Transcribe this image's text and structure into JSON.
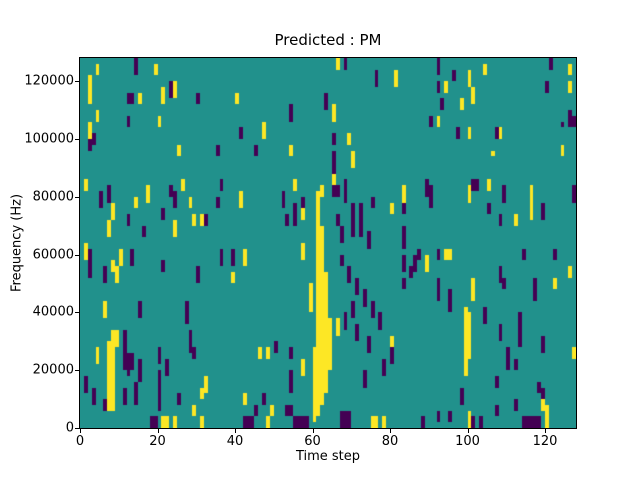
{
  "chart_data": {
    "type": "heatmap",
    "title": "Predicted : PM",
    "xlabel": "Time step",
    "ylabel": "Frequency (Hz)",
    "xlim": [
      0,
      128
    ],
    "ylim": [
      0,
      128000
    ],
    "x_ticks": [
      0,
      20,
      40,
      60,
      80,
      100,
      120
    ],
    "y_ticks": [
      0,
      20000,
      40000,
      60000,
      80000,
      100000,
      120000
    ],
    "grid": {
      "n_cols": 128,
      "n_rows": 64,
      "hz_per_row": 2000,
      "steps_per_col": 1
    },
    "colors": {
      "0": "#440154",
      "1": "#21918c",
      "2": "#fde725"
    },
    "background_value": 1,
    "value_legend": {
      "0": "low (dark purple)",
      "1": "mid (teal background)",
      "2": "high (yellow)"
    },
    "cell_runs": [
      [
        2,
        56,
        60,
        2
      ],
      [
        4,
        61,
        62,
        2
      ],
      [
        14,
        61,
        63,
        0
      ],
      [
        19,
        61,
        62,
        2
      ],
      [
        23,
        57,
        59,
        0
      ],
      [
        24,
        57,
        59,
        2
      ],
      [
        12,
        56,
        57,
        0
      ],
      [
        13,
        56,
        57,
        0
      ],
      [
        15,
        56,
        57,
        2
      ],
      [
        21,
        56,
        58,
        2
      ],
      [
        30,
        56,
        57,
        0
      ],
      [
        40,
        56,
        57,
        2
      ],
      [
        4,
        53,
        54,
        2
      ],
      [
        12,
        52,
        53,
        0
      ],
      [
        20,
        52,
        53,
        2
      ],
      [
        2,
        50,
        52,
        2
      ],
      [
        3,
        49,
        50,
        0
      ],
      [
        2,
        48,
        49,
        0
      ],
      [
        41,
        50,
        51,
        0
      ],
      [
        25,
        47,
        48,
        2
      ],
      [
        35,
        47,
        48,
        0
      ],
      [
        66,
        62,
        63,
        2
      ],
      [
        68,
        62,
        63,
        0
      ],
      [
        76,
        59,
        61,
        0
      ],
      [
        81,
        59,
        61,
        2
      ],
      [
        63,
        55,
        57,
        0
      ],
      [
        65,
        53,
        55,
        2
      ],
      [
        54,
        53,
        55,
        0
      ],
      [
        47,
        50,
        52,
        2
      ],
      [
        65,
        49,
        50,
        0
      ],
      [
        69,
        49,
        50,
        2
      ],
      [
        45,
        47,
        48,
        0
      ],
      [
        54,
        47,
        48,
        2
      ],
      [
        121,
        62,
        63,
        0
      ],
      [
        92,
        61,
        63,
        0
      ],
      [
        104,
        61,
        62,
        2
      ],
      [
        126,
        61,
        62,
        2
      ],
      [
        96,
        60,
        61,
        0
      ],
      [
        100,
        59,
        61,
        2
      ],
      [
        92,
        58,
        59,
        0
      ],
      [
        94,
        58,
        59,
        2
      ],
      [
        120,
        58,
        59,
        0
      ],
      [
        126,
        58,
        59,
        2
      ],
      [
        101,
        56,
        58,
        2
      ],
      [
        93,
        55,
        56,
        0
      ],
      [
        98,
        55,
        56,
        2
      ],
      [
        126,
        52,
        54,
        0
      ],
      [
        127,
        52,
        53,
        0
      ],
      [
        90,
        52,
        53,
        0
      ],
      [
        92,
        52,
        53,
        2
      ],
      [
        124,
        52,
        52,
        0
      ],
      [
        97,
        50,
        51,
        0
      ],
      [
        100,
        50,
        51,
        2
      ],
      [
        107,
        50,
        51,
        0
      ],
      [
        108,
        50,
        51,
        2
      ],
      [
        124,
        47,
        48,
        2
      ],
      [
        106,
        47,
        47,
        2
      ],
      [
        1,
        41,
        42,
        2
      ],
      [
        7,
        39,
        41,
        0
      ],
      [
        26,
        41,
        42,
        2
      ],
      [
        36,
        41,
        42,
        0
      ],
      [
        23,
        40,
        41,
        0
      ],
      [
        17,
        39,
        41,
        2
      ],
      [
        5,
        38,
        40,
        0
      ],
      [
        14,
        38,
        39,
        2
      ],
      [
        28,
        38,
        39,
        2
      ],
      [
        24,
        38,
        40,
        0
      ],
      [
        35,
        38,
        39,
        0
      ],
      [
        41,
        38,
        40,
        2
      ],
      [
        8,
        36,
        38,
        2
      ],
      [
        12,
        35,
        36,
        0
      ],
      [
        21,
        36,
        37,
        0
      ],
      [
        29,
        35,
        36,
        2
      ],
      [
        31,
        35,
        36,
        2
      ],
      [
        32,
        35,
        36,
        0
      ],
      [
        65,
        43,
        44,
        0
      ],
      [
        65,
        42,
        43,
        2
      ],
      [
        68,
        41,
        42,
        0
      ],
      [
        65,
        40,
        41,
        0
      ],
      [
        66,
        40,
        41,
        0
      ],
      [
        62,
        40,
        41,
        2
      ],
      [
        68,
        39,
        40,
        0
      ],
      [
        75,
        38,
        39,
        0
      ],
      [
        70,
        37,
        38,
        0
      ],
      [
        72,
        37,
        38,
        0
      ],
      [
        80,
        37,
        38,
        2
      ],
      [
        83,
        37,
        38,
        0
      ],
      [
        55,
        41,
        42,
        2
      ],
      [
        52,
        38,
        40,
        0
      ],
      [
        57,
        38,
        39,
        0
      ],
      [
        57,
        36,
        37,
        2
      ],
      [
        55,
        35,
        38,
        0
      ],
      [
        53,
        35,
        36,
        0
      ],
      [
        66,
        35,
        36,
        0
      ],
      [
        101,
        41,
        42,
        0
      ],
      [
        102,
        41,
        42,
        0
      ],
      [
        105,
        41,
        42,
        2
      ],
      [
        83,
        39,
        41,
        2
      ],
      [
        90,
        38,
        41,
        0
      ],
      [
        100,
        39,
        41,
        2
      ],
      [
        109,
        39,
        41,
        0
      ],
      [
        116,
        39,
        41,
        2
      ],
      [
        127,
        39,
        41,
        0
      ],
      [
        105,
        37,
        38,
        0
      ],
      [
        116,
        36,
        38,
        2
      ],
      [
        119,
        36,
        38,
        0
      ],
      [
        108,
        35,
        36,
        0
      ],
      [
        112,
        35,
        36,
        2
      ],
      [
        89,
        40,
        42,
        0
      ],
      [
        7,
        33,
        35,
        2
      ],
      [
        16,
        33,
        34,
        0
      ],
      [
        24,
        33,
        35,
        2
      ],
      [
        1,
        29,
        31,
        2
      ],
      [
        2,
        26,
        30,
        0
      ],
      [
        10,
        28,
        30,
        2
      ],
      [
        13,
        28,
        30,
        0
      ],
      [
        8,
        27,
        28,
        2
      ],
      [
        21,
        27,
        28,
        0
      ],
      [
        36,
        28,
        30,
        0
      ],
      [
        39,
        28,
        30,
        0
      ],
      [
        42,
        28,
        30,
        2
      ],
      [
        6,
        25,
        27,
        0
      ],
      [
        9,
        25,
        27,
        2
      ],
      [
        39,
        25,
        26,
        2
      ],
      [
        30,
        25,
        27,
        0
      ],
      [
        67,
        32,
        34,
        0
      ],
      [
        70,
        33,
        38,
        0
      ],
      [
        72,
        33,
        38,
        0
      ],
      [
        74,
        31,
        33,
        0
      ],
      [
        67,
        28,
        29,
        0
      ],
      [
        57,
        29,
        31,
        2
      ],
      [
        69,
        25,
        27,
        0
      ],
      [
        65,
        45,
        47,
        0
      ],
      [
        70,
        45,
        47,
        2
      ],
      [
        83,
        31,
        34,
        0
      ],
      [
        87,
        29,
        30,
        0
      ],
      [
        92,
        29,
        30,
        0
      ],
      [
        94,
        29,
        30,
        2
      ],
      [
        95,
        29,
        30,
        2
      ],
      [
        114,
        29,
        30,
        0
      ],
      [
        122,
        29,
        30,
        0
      ],
      [
        83,
        27,
        29,
        0
      ],
      [
        86,
        27,
        29,
        0
      ],
      [
        89,
        27,
        29,
        2
      ],
      [
        85,
        26,
        27,
        0
      ],
      [
        126,
        26,
        27,
        2
      ],
      [
        108,
        25,
        27,
        0
      ],
      [
        83,
        24,
        25,
        0
      ],
      [
        92,
        22,
        25,
        0
      ],
      [
        101,
        22,
        25,
        2
      ],
      [
        109,
        24,
        25,
        0
      ],
      [
        117,
        22,
        25,
        0
      ],
      [
        122,
        24,
        25,
        2
      ],
      [
        95,
        20,
        23,
        0
      ],
      [
        104,
        18,
        20,
        0
      ],
      [
        113,
        14,
        19,
        0
      ],
      [
        59,
        20,
        24,
        2
      ],
      [
        60,
        1,
        13,
        2
      ],
      [
        61,
        2,
        40,
        2
      ],
      [
        62,
        4,
        34,
        2
      ],
      [
        63,
        6,
        26,
        2
      ],
      [
        64,
        10,
        18,
        2
      ],
      [
        7,
        3,
        14,
        2
      ],
      [
        8,
        3,
        16,
        2
      ],
      [
        9,
        14,
        16,
        2
      ],
      [
        99,
        9,
        20,
        2
      ],
      [
        100,
        12,
        19,
        2
      ],
      [
        71,
        23,
        25,
        0
      ],
      [
        73,
        21,
        23,
        0
      ],
      [
        75,
        19,
        21,
        0
      ],
      [
        77,
        17,
        19,
        0
      ],
      [
        70,
        19,
        21,
        0
      ],
      [
        68,
        17,
        19,
        0
      ],
      [
        66,
        16,
        18,
        2
      ],
      [
        71,
        15,
        17,
        0
      ],
      [
        74,
        13,
        15,
        0
      ],
      [
        80,
        13,
        15,
        2
      ],
      [
        80,
        11,
        13,
        0
      ],
      [
        78,
        9,
        11,
        0
      ],
      [
        57,
        9,
        11,
        2
      ],
      [
        6,
        19,
        21,
        2
      ],
      [
        15,
        19,
        21,
        0
      ],
      [
        27,
        18,
        21,
        0
      ],
      [
        28,
        13,
        16,
        0
      ],
      [
        20,
        11,
        13,
        0
      ],
      [
        22,
        9,
        11,
        0
      ],
      [
        11,
        10,
        16,
        0
      ],
      [
        12,
        9,
        12,
        0
      ],
      [
        13,
        10,
        12,
        0
      ],
      [
        4,
        11,
        13,
        2
      ],
      [
        15,
        8,
        11,
        0
      ],
      [
        1,
        6,
        8,
        0
      ],
      [
        29,
        12,
        13,
        0
      ],
      [
        50,
        13,
        14,
        0
      ],
      [
        54,
        12,
        13,
        0
      ],
      [
        46,
        12,
        13,
        2
      ],
      [
        48,
        12,
        13,
        2
      ],
      [
        108,
        15,
        17,
        0
      ],
      [
        110,
        10,
        13,
        0
      ],
      [
        112,
        10,
        11,
        0
      ],
      [
        119,
        13,
        15,
        0
      ],
      [
        127,
        12,
        13,
        2
      ],
      [
        107,
        7,
        8,
        0
      ],
      [
        118,
        6,
        7,
        0
      ],
      [
        119,
        5,
        6,
        0
      ],
      [
        20,
        3,
        9,
        0
      ],
      [
        32,
        6,
        8,
        2
      ],
      [
        31,
        5,
        6,
        2
      ],
      [
        25,
        4,
        5,
        0
      ],
      [
        42,
        4,
        5,
        2
      ],
      [
        47,
        4,
        5,
        0
      ],
      [
        45,
        2,
        3,
        0
      ],
      [
        49,
        2,
        3,
        2
      ],
      [
        53,
        2,
        3,
        0
      ],
      [
        54,
        2,
        3,
        0
      ],
      [
        29,
        2,
        3,
        2
      ],
      [
        3,
        4,
        6,
        0
      ],
      [
        6,
        3,
        4,
        0
      ],
      [
        11,
        4,
        6,
        0
      ],
      [
        14,
        4,
        7,
        0
      ],
      [
        54,
        6,
        9,
        0
      ],
      [
        73,
        7,
        9,
        0
      ],
      [
        98,
        4,
        6,
        0
      ],
      [
        119,
        3,
        4,
        2
      ],
      [
        107,
        2,
        3,
        0
      ],
      [
        112,
        3,
        4,
        0
      ],
      [
        18,
        0,
        1,
        0
      ],
      [
        19,
        0,
        1,
        0
      ],
      [
        21,
        0,
        1,
        2
      ],
      [
        22,
        0,
        1,
        2
      ],
      [
        24,
        0,
        1,
        2
      ],
      [
        31,
        0,
        1,
        2
      ],
      [
        42,
        0,
        1,
        0
      ],
      [
        43,
        0,
        1,
        0
      ],
      [
        44,
        0,
        1,
        0
      ],
      [
        48,
        0,
        1,
        2
      ],
      [
        55,
        0,
        1,
        0
      ],
      [
        56,
        0,
        1,
        0
      ],
      [
        57,
        0,
        1,
        0
      ],
      [
        58,
        0,
        1,
        0
      ],
      [
        67,
        0,
        2,
        0
      ],
      [
        68,
        0,
        2,
        0
      ],
      [
        69,
        0,
        2,
        0
      ],
      [
        75,
        0,
        1,
        2
      ],
      [
        76,
        0,
        1,
        2
      ],
      [
        78,
        0,
        1,
        2
      ],
      [
        101,
        0,
        1,
        0
      ],
      [
        103,
        0,
        1,
        0
      ],
      [
        114,
        0,
        1,
        0
      ],
      [
        115,
        0,
        1,
        0
      ],
      [
        116,
        0,
        1,
        0
      ],
      [
        117,
        0,
        1,
        0
      ],
      [
        118,
        0,
        1,
        0
      ],
      [
        120,
        0,
        3,
        2
      ],
      [
        88,
        0,
        1,
        0
      ],
      [
        92,
        1,
        2,
        0
      ],
      [
        95,
        1,
        2,
        0
      ],
      [
        100,
        0,
        2,
        2
      ]
    ]
  },
  "layout_text": {
    "note": "static matplotlib-style figure, no interactive controls visible"
  }
}
